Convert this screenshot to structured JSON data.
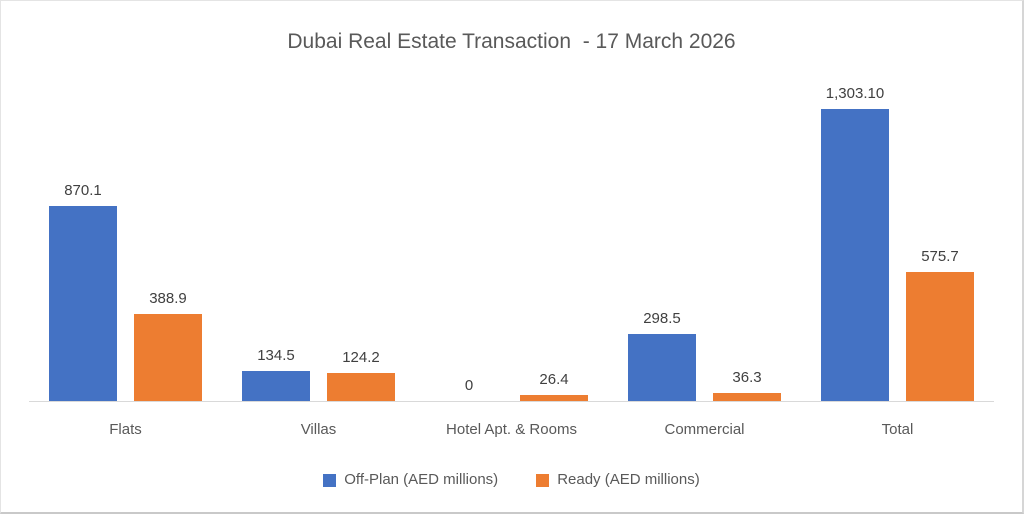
{
  "title": "Dubai Real Estate Transaction  - 17 March 2026",
  "chart_data": {
    "type": "bar",
    "title": "Dubai Real Estate Transaction  - 17 March 2026",
    "categories": [
      "Flats",
      "Villas",
      "Hotel Apt. & Rooms",
      "Commercial",
      "Total"
    ],
    "series": [
      {
        "name": "Off-Plan (AED millions)",
        "color": "#4472C4",
        "values": [
          870.1,
          134.5,
          0,
          298.5,
          1303.1
        ],
        "labels": [
          "870.1",
          "134.5",
          "0",
          "298.5",
          "1,303.10"
        ]
      },
      {
        "name": "Ready (AED millions)",
        "color": "#ED7D31",
        "values": [
          388.9,
          124.2,
          26.4,
          36.3,
          575.7
        ],
        "labels": [
          "388.9",
          "124.2",
          "26.4",
          "36.3",
          "575.7"
        ]
      }
    ],
    "xlabel": "",
    "ylabel": "",
    "ylim": [
      0,
      1303.1
    ],
    "grid": false,
    "y_axis_visible": false,
    "legend_position": "bottom",
    "axis_line_color": "#d9d9d9"
  }
}
